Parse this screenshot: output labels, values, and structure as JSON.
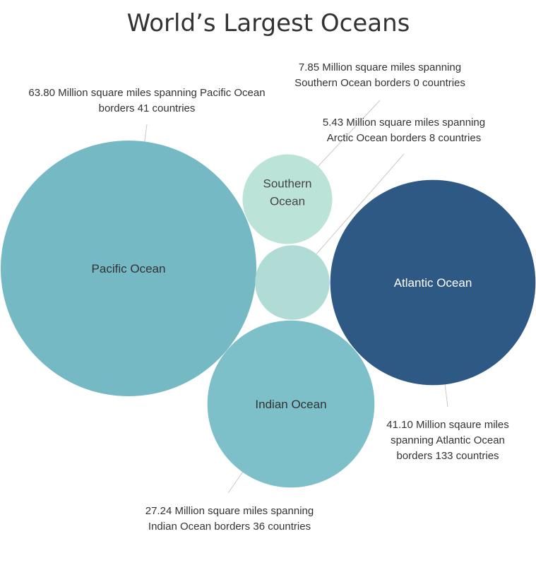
{
  "chart_data": {
    "type": "bubble",
    "title": "World’s Largest Oceans",
    "unit": "Million square miles",
    "series": [
      {
        "name": "Pacific Ocean",
        "area_million_sq_mi": 63.8,
        "borders_countries": 41,
        "color": "#74b9c4",
        "label_color": "#333333",
        "annotation": [
          "63.80 Million square miles spanning Pacific Ocean",
          "borders 41 countries"
        ]
      },
      {
        "name": "Atlantic Ocean",
        "area_million_sq_mi": 41.1,
        "borders_countries": 133,
        "color": "#2e5984",
        "label_color": "#ffffff",
        "annotation": [
          "41.10 Million sqaure miles",
          "spanning Atlantic Ocean",
          "borders 133 countries"
        ]
      },
      {
        "name": "Indian Ocean",
        "area_million_sq_mi": 27.24,
        "borders_countries": 36,
        "color": "#7dc0c9",
        "label_color": "#333333",
        "annotation": [
          "27.24 Million square miles spanning",
          "Indian Ocean borders  36 countries"
        ]
      },
      {
        "name": "Southern Ocean",
        "label_lines": [
          "Southern",
          "Ocean"
        ],
        "area_million_sq_mi": 7.85,
        "borders_countries": 0,
        "color": "#bce3d8",
        "label_color": "#444444",
        "annotation": [
          "7.85 Million square miles spanning",
          "Southern Ocean borders 0 countries"
        ]
      },
      {
        "name": "Arctic Ocean",
        "area_million_sq_mi": 5.43,
        "borders_countries": 8,
        "color": "#b1dcd6",
        "label_color": "#444444",
        "show_label": false,
        "annotation": [
          "5.43 Million square miles spanning",
          "Arctic Ocean borders  8 countries"
        ]
      }
    ]
  }
}
